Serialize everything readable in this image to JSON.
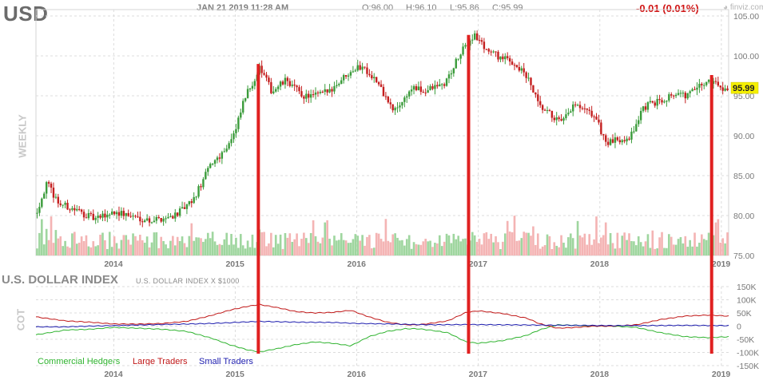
{
  "header": {
    "ticker": "USD",
    "datetime": "JAN 21 2019 11:28 AM",
    "open": "O:96.00",
    "high": "H:96.10",
    "low": "L:95.86",
    "close": "C:95.99",
    "change": "-0.01 (0.01%)",
    "brand": "finviz.com"
  },
  "price_panel": {
    "side_label": "WEEKLY",
    "last_price_label": "95.99"
  },
  "cot_panel": {
    "title": "U.S. DOLLAR INDEX",
    "subtitle": "U.S. DOLLAR INDEX X $1000",
    "side_label": "COT"
  },
  "colors": {
    "up": "#3a9b3a",
    "down": "#c41e1e",
    "volume_up": "#9fd69f",
    "volume_down": "#f4b4b4",
    "commercial": "#2fb32f",
    "large": "#c01818",
    "small": "#1c1cae",
    "marker": "#e02020",
    "price_tag_bg": "#f5f000"
  },
  "chart_data": [
    {
      "type": "candlestick",
      "title": "USD",
      "frequency": "weekly",
      "y_axis_side": "right",
      "ylim": [
        75,
        105
      ],
      "y_ticks": [
        "105.00",
        "100.00",
        "95.00",
        "90.00",
        "85.00",
        "80.00",
        "75.00"
      ],
      "x_ticks": [
        "2014",
        "2015",
        "2016",
        "2017",
        "2018",
        "2019"
      ],
      "x_range": [
        2013.36,
        2019.06
      ],
      "last_price": 95.99,
      "price_path": [
        [
          2013.36,
          80.3
        ],
        [
          2013.45,
          84.0
        ],
        [
          2013.55,
          81.5
        ],
        [
          2013.7,
          80.6
        ],
        [
          2013.85,
          79.5
        ],
        [
          2014.0,
          80.5
        ],
        [
          2014.15,
          79.9
        ],
        [
          2014.3,
          79.4
        ],
        [
          2014.45,
          79.8
        ],
        [
          2014.55,
          80.5
        ],
        [
          2014.65,
          81.8
        ],
        [
          2014.8,
          86.5
        ],
        [
          2014.9,
          88.0
        ],
        [
          2015.0,
          90.5
        ],
        [
          2015.07,
          94.5
        ],
        [
          2015.2,
          98.5
        ],
        [
          2015.3,
          95.5
        ],
        [
          2015.42,
          97.0
        ],
        [
          2015.55,
          95.0
        ],
        [
          2015.65,
          95.0
        ],
        [
          2015.75,
          95.5
        ],
        [
          2015.82,
          96.3
        ],
        [
          2015.95,
          98.3
        ],
        [
          2016.05,
          98.7
        ],
        [
          2016.15,
          97.0
        ],
        [
          2016.3,
          93.0
        ],
        [
          2016.38,
          94.5
        ],
        [
          2016.45,
          96.0
        ],
        [
          2016.55,
          95.5
        ],
        [
          2016.62,
          96.0
        ],
        [
          2016.72,
          96.5
        ],
        [
          2016.85,
          100.3
        ],
        [
          2016.96,
          102.7
        ],
        [
          2017.05,
          101.0
        ],
        [
          2017.15,
          100.0
        ],
        [
          2017.3,
          99.0
        ],
        [
          2017.4,
          97.2
        ],
        [
          2017.5,
          93.5
        ],
        [
          2017.6,
          92.5
        ],
        [
          2017.68,
          91.5
        ],
        [
          2017.78,
          93.8
        ],
        [
          2017.88,
          93.0
        ],
        [
          2017.95,
          92.5
        ],
        [
          2018.05,
          89.0
        ],
        [
          2018.15,
          89.5
        ],
        [
          2018.25,
          90.0
        ],
        [
          2018.35,
          93.5
        ],
        [
          2018.5,
          94.5
        ],
        [
          2018.6,
          95.3
        ],
        [
          2018.7,
          95.0
        ],
        [
          2018.8,
          96.0
        ],
        [
          2018.9,
          97.0
        ],
        [
          2019.0,
          96.0
        ],
        [
          2019.06,
          96.0
        ]
      ],
      "vertical_markers_x": [
        2015.19,
        2016.92,
        2018.92
      ]
    },
    {
      "type": "line",
      "title": "U.S. DOLLAR INDEX",
      "subtitle": "U.S. DOLLAR INDEX X $1000",
      "y_axis_side": "right",
      "ylim": [
        -150000,
        150000
      ],
      "y_ticks": [
        "150K",
        "100K",
        "50K",
        "0",
        "-50K",
        "-100K",
        "-150K"
      ],
      "x_ticks": [
        "2014",
        "2015",
        "2016",
        "2017",
        "2018",
        "2019"
      ],
      "series": [
        {
          "name": "Commercial Hedgers",
          "points": [
            [
              2013.36,
              -33000
            ],
            [
              2013.6,
              -15000
            ],
            [
              2013.8,
              -12000
            ],
            [
              2014.0,
              -5000
            ],
            [
              2014.2,
              -8000
            ],
            [
              2014.4,
              -12000
            ],
            [
              2014.6,
              -20000
            ],
            [
              2014.8,
              -45000
            ],
            [
              2014.95,
              -70000
            ],
            [
              2015.1,
              -90000
            ],
            [
              2015.2,
              -98000
            ],
            [
              2015.35,
              -85000
            ],
            [
              2015.5,
              -70000
            ],
            [
              2015.65,
              -60000
            ],
            [
              2015.8,
              -65000
            ],
            [
              2015.95,
              -75000
            ],
            [
              2016.1,
              -40000
            ],
            [
              2016.25,
              -20000
            ],
            [
              2016.4,
              -10000
            ],
            [
              2016.5,
              -10000
            ],
            [
              2016.6,
              -15000
            ],
            [
              2016.75,
              -25000
            ],
            [
              2016.9,
              -60000
            ],
            [
              2017.0,
              -65000
            ],
            [
              2017.2,
              -55000
            ],
            [
              2017.4,
              -35000
            ],
            [
              2017.5,
              -15000
            ],
            [
              2017.65,
              5000
            ],
            [
              2017.8,
              3000
            ],
            [
              2017.95,
              0
            ],
            [
              2018.1,
              0
            ],
            [
              2018.3,
              -5000
            ],
            [
              2018.5,
              -25000
            ],
            [
              2018.7,
              -40000
            ],
            [
              2018.9,
              -44000
            ],
            [
              2019.06,
              -40000
            ]
          ]
        },
        {
          "name": "Large Traders",
          "points": [
            [
              2013.36,
              35000
            ],
            [
              2013.6,
              20000
            ],
            [
              2013.8,
              15000
            ],
            [
              2014.0,
              8000
            ],
            [
              2014.2,
              8000
            ],
            [
              2014.4,
              10000
            ],
            [
              2014.6,
              18000
            ],
            [
              2014.8,
              40000
            ],
            [
              2014.95,
              60000
            ],
            [
              2015.1,
              75000
            ],
            [
              2015.2,
              82000
            ],
            [
              2015.35,
              70000
            ],
            [
              2015.5,
              55000
            ],
            [
              2015.65,
              50000
            ],
            [
              2015.8,
              52000
            ],
            [
              2015.95,
              60000
            ],
            [
              2016.1,
              35000
            ],
            [
              2016.25,
              15000
            ],
            [
              2016.4,
              5000
            ],
            [
              2016.5,
              5000
            ],
            [
              2016.6,
              10000
            ],
            [
              2016.75,
              20000
            ],
            [
              2016.9,
              52000
            ],
            [
              2017.0,
              58000
            ],
            [
              2017.2,
              48000
            ],
            [
              2017.4,
              30000
            ],
            [
              2017.5,
              10000
            ],
            [
              2017.65,
              -8000
            ],
            [
              2017.8,
              -5000
            ],
            [
              2017.95,
              0
            ],
            [
              2018.1,
              0
            ],
            [
              2018.3,
              5000
            ],
            [
              2018.5,
              25000
            ],
            [
              2018.7,
              38000
            ],
            [
              2018.9,
              42000
            ],
            [
              2019.06,
              38000
            ]
          ]
        },
        {
          "name": "Small Traders",
          "points": [
            [
              2013.36,
              -3000
            ],
            [
              2013.6,
              -3000
            ],
            [
              2013.8,
              0
            ],
            [
              2014.0,
              2000
            ],
            [
              2014.3,
              5000
            ],
            [
              2014.6,
              8000
            ],
            [
              2014.8,
              10000
            ],
            [
              2015.0,
              14000
            ],
            [
              2015.2,
              18000
            ],
            [
              2015.5,
              15000
            ],
            [
              2015.8,
              14000
            ],
            [
              2016.0,
              10000
            ],
            [
              2016.3,
              8000
            ],
            [
              2016.6,
              5000
            ],
            [
              2016.9,
              6000
            ],
            [
              2017.2,
              5000
            ],
            [
              2017.5,
              4000
            ],
            [
              2017.8,
              3000
            ],
            [
              2018.1,
              2000
            ],
            [
              2018.4,
              2000
            ],
            [
              2018.7,
              3000
            ],
            [
              2019.06,
              2000
            ]
          ]
        }
      ]
    }
  ]
}
